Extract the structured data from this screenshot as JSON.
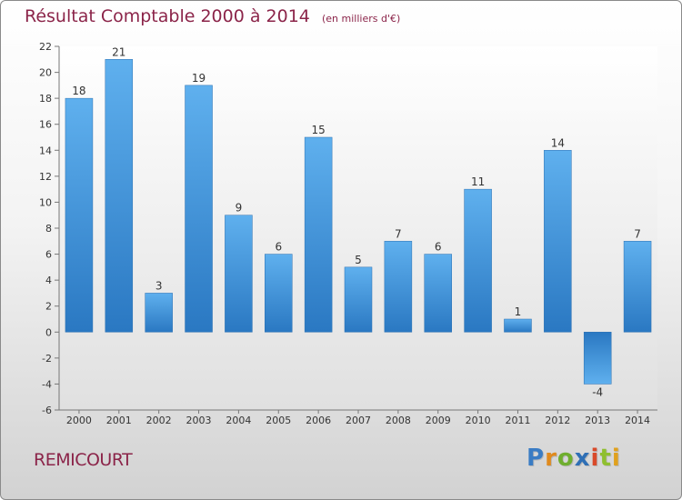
{
  "header": {
    "title": "Résultat Comptable 2000 à 2014",
    "subtitle": "(en milliers d'€)"
  },
  "footer": {
    "place": "REMICOURT",
    "logo_letters": [
      {
        "char": "P",
        "color": "#3a7cc4"
      },
      {
        "char": "r",
        "color": "#e08a1e"
      },
      {
        "char": "o",
        "color": "#6fae2f"
      },
      {
        "char": "x",
        "color": "#2f6fb5"
      },
      {
        "char": "i",
        "color": "#d94a2a"
      },
      {
        "char": "t",
        "color": "#8fbf2f"
      },
      {
        "char": "i",
        "color": "#e0a11e"
      }
    ]
  },
  "chart_data": {
    "type": "bar",
    "categories": [
      "2000",
      "2001",
      "2002",
      "2003",
      "2004",
      "2005",
      "2006",
      "2007",
      "2008",
      "2009",
      "2010",
      "2011",
      "2012",
      "2013",
      "2014"
    ],
    "values": [
      18,
      21,
      3,
      19,
      9,
      6,
      15,
      5,
      7,
      6,
      11,
      1,
      14,
      -4,
      7
    ],
    "data_labels": [
      "18",
      "21",
      "3",
      "19",
      "9",
      "6",
      "15",
      "5",
      "7",
      "6",
      "11",
      "1",
      "14",
      "-4",
      "7"
    ],
    "ylim": [
      -6,
      22
    ],
    "yticks": [
      -6,
      -4,
      -2,
      0,
      2,
      4,
      6,
      8,
      10,
      12,
      14,
      16,
      18,
      20,
      22
    ],
    "grid": false,
    "bar_color": "#3b8fd6"
  }
}
